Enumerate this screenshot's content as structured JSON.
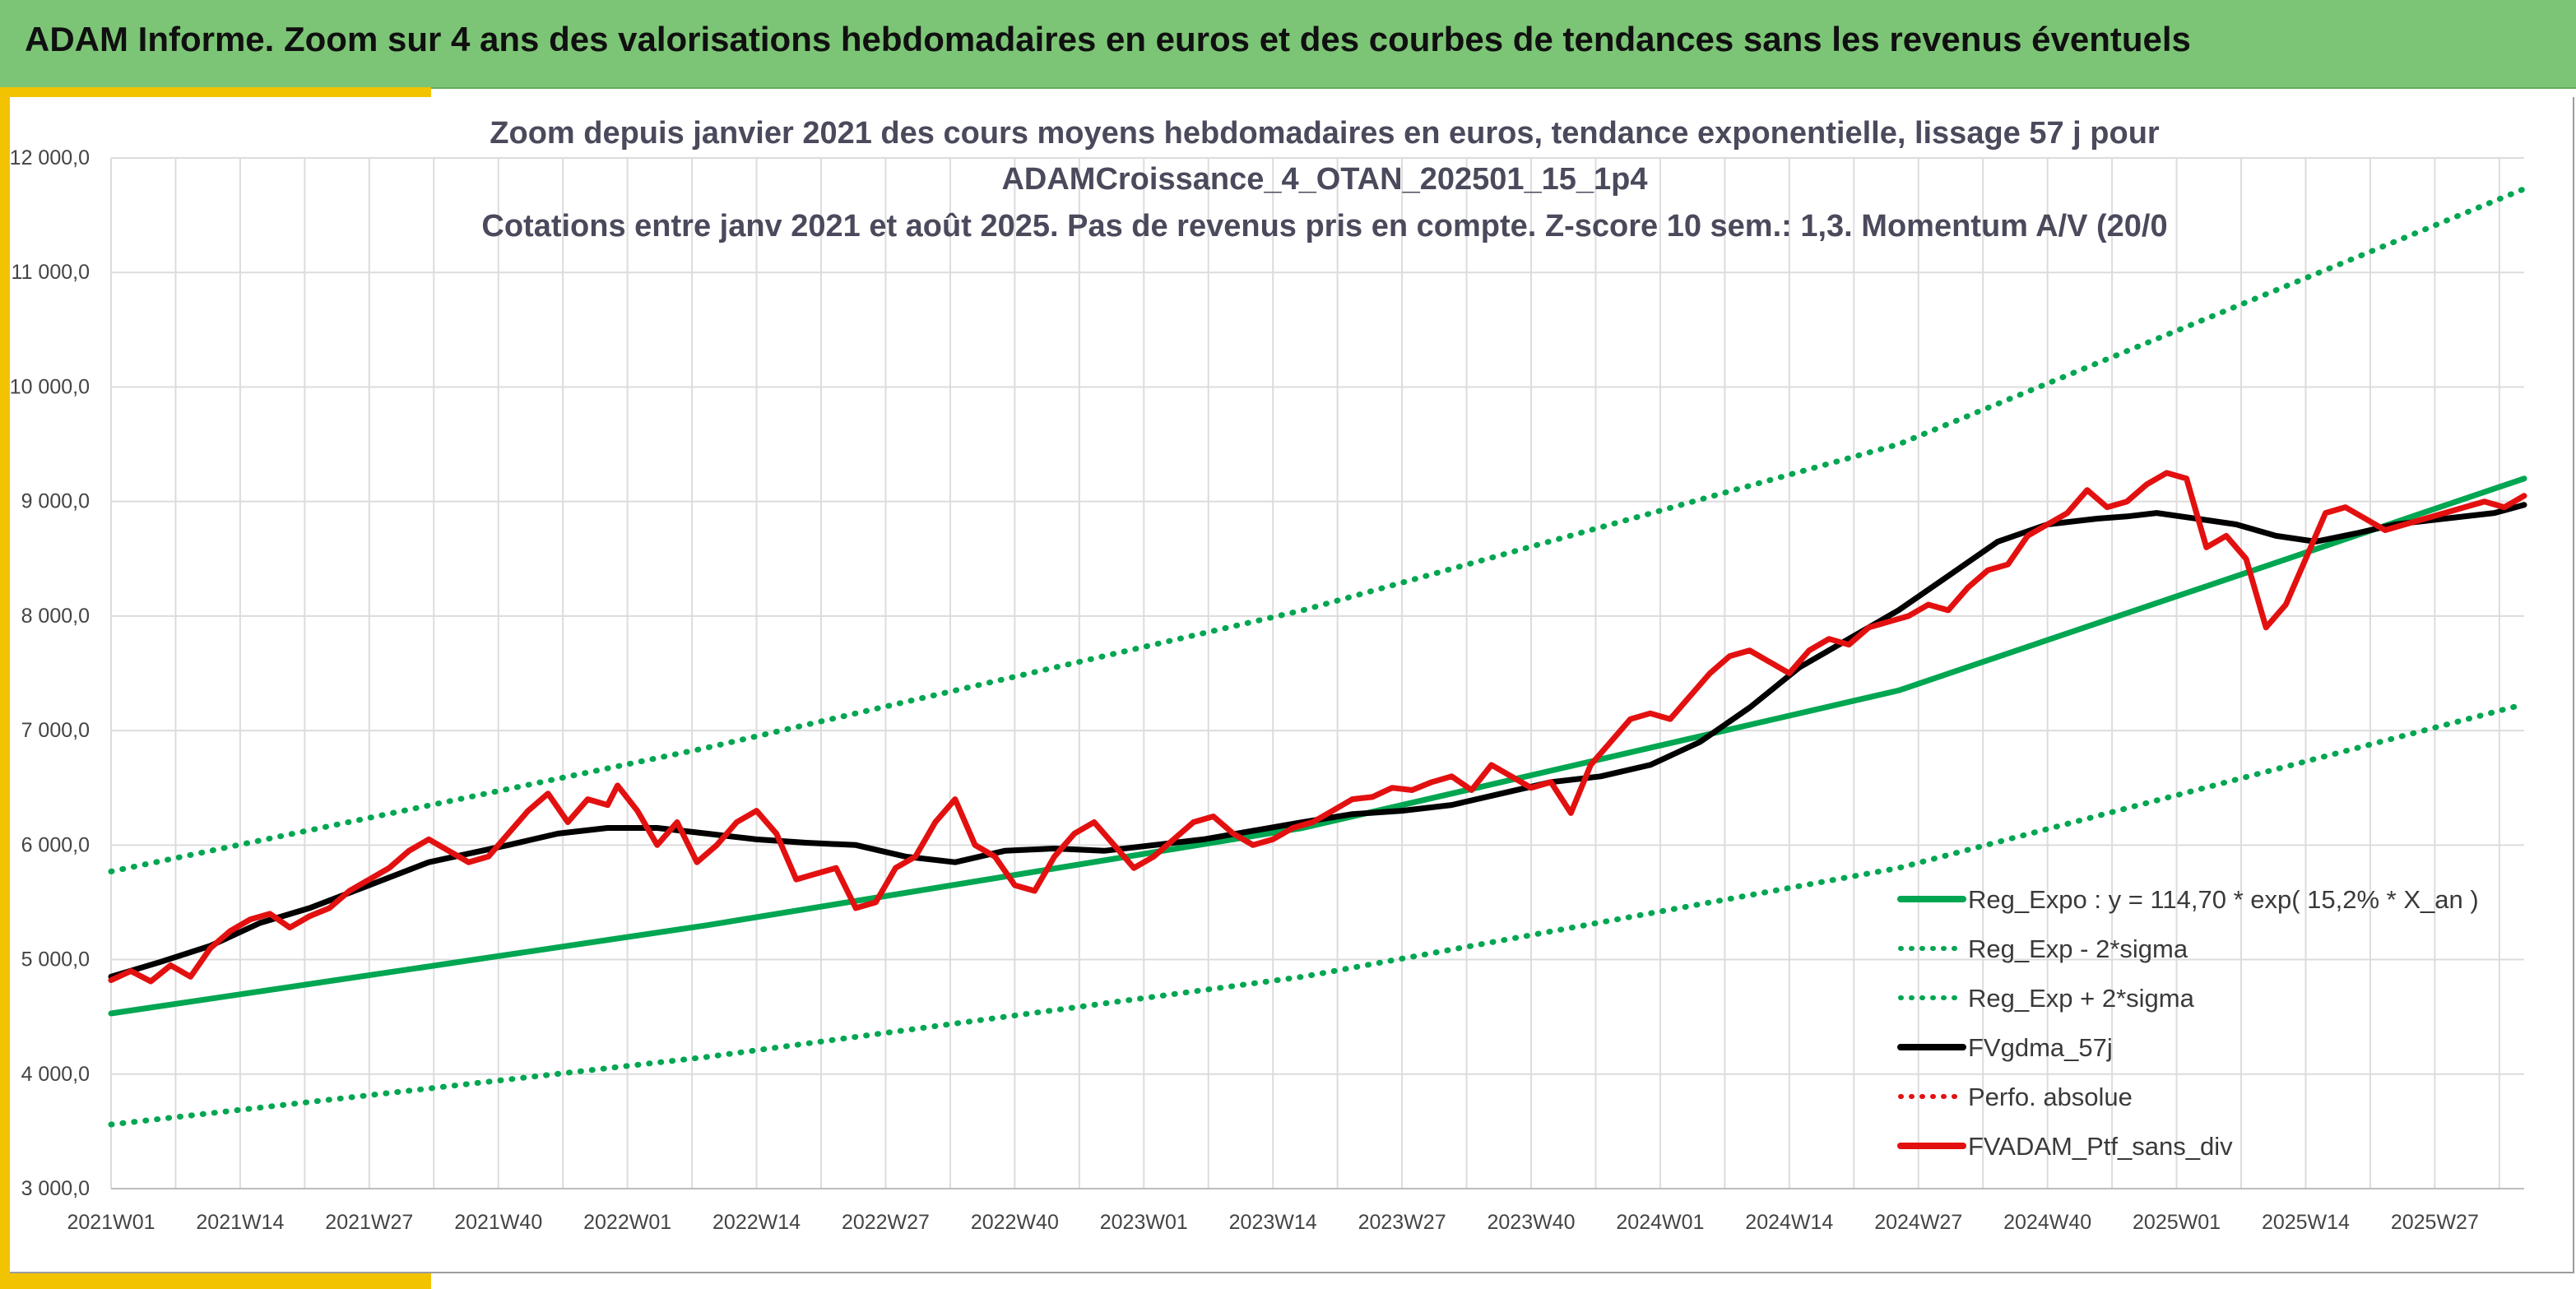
{
  "header": {
    "title": "ADAM Informe. Zoom sur 4 ans des valorisations hebdomadaires en euros et des courbes de tendances sans les revenus éventuels"
  },
  "colors": {
    "header_bg": "#7cc576",
    "accent": "#f2c300",
    "trend": "#00a651",
    "average": "#000000",
    "portfolio": "#e31010"
  },
  "chart_data": {
    "type": "line",
    "title_lines": [
      "Zoom depuis janvier 2021 des cours moyens hebdomadaires en euros, tendance exponentielle, lissage 57 j pour",
      "ADAMCroissance_4_OTAN_202501_15_1p4",
      "Cotations entre janv 2021 et août 2025. Pas de revenus pris en compte. Z-score 10 sem.: 1,3. Momentum A/V (20/0"
    ],
    "x_tick_labels": [
      "2021W01",
      "2021W14",
      "2021W27",
      "2021W40",
      "2022W01",
      "2022W14",
      "2022W27",
      "2022W40",
      "2023W01",
      "2023W14",
      "2023W27",
      "2023W40",
      "2024W01",
      "2024W14",
      "2024W27",
      "2024W40",
      "2025W01",
      "2025W14",
      "2025W27"
    ],
    "y_tick_labels": [
      "3 000,0",
      "4 000,0",
      "5 000,0",
      "6 000,0",
      "7 000,0",
      "8 000,0",
      "9 000,0",
      "10 000,0",
      "11 000,0",
      "12 000,0"
    ],
    "ylim": [
      3000,
      12000
    ],
    "x_unit": "weeks since 2021W01",
    "xlim": [
      0,
      243
    ],
    "grid": true,
    "legend_position": "bottom-right",
    "legend": [
      {
        "label": "Reg_Expo : y = 114,70 * exp( 15,2% *  X_an )",
        "style": "solid",
        "color": "#00a651"
      },
      {
        "label": "Reg_Exp - 2*sigma",
        "style": "dotted",
        "color": "#00a651"
      },
      {
        "label": "Reg_Exp + 2*sigma",
        "style": "dotted",
        "color": "#00a651"
      },
      {
        "label": "FVgdma_57j",
        "style": "solid",
        "color": "#000000"
      },
      {
        "label": "Perfo. absolue",
        "style": "dotted",
        "color": "#e31010"
      },
      {
        "label": "FVADAM_Ptf_sans_div",
        "style": "solid",
        "color": "#e31010"
      }
    ],
    "series": [
      {
        "name": "Reg_Expo : y = 114,70 * exp( 15,2% *  X_an )",
        "x": [
          0,
          60,
          120,
          180,
          243
        ],
        "values": [
          4530,
          5300,
          6150,
          7350,
          9200
        ]
      },
      {
        "name": "Reg_Exp - 2*sigma",
        "x": [
          0,
          60,
          120,
          180,
          243
        ],
        "values": [
          3560,
          4150,
          4850,
          5800,
          7230
        ]
      },
      {
        "name": "Reg_Exp + 2*sigma",
        "x": [
          0,
          60,
          120,
          180,
          243
        ],
        "values": [
          5770,
          6850,
          8050,
          9500,
          11730
        ]
      },
      {
        "name": "FVgdma_57j",
        "x": [
          0,
          5,
          10,
          15,
          20,
          26,
          32,
          40,
          45,
          50,
          55,
          60,
          65,
          70,
          75,
          80,
          85,
          90,
          95,
          100,
          110,
          120,
          125,
          130,
          135,
          140,
          145,
          150,
          155,
          160,
          165,
          170,
          175,
          180,
          185,
          190,
          195,
          200,
          203,
          206,
          210,
          214,
          218,
          222,
          226,
          230,
          235,
          240,
          243
        ],
        "values": [
          4850,
          4980,
          5120,
          5320,
          5450,
          5650,
          5850,
          6000,
          6100,
          6150,
          6150,
          6100,
          6050,
          6020,
          6000,
          5900,
          5850,
          5950,
          5970,
          5950,
          6050,
          6200,
          6270,
          6300,
          6350,
          6450,
          6550,
          6600,
          6700,
          6900,
          7200,
          7550,
          7800,
          8050,
          8350,
          8650,
          8800,
          8850,
          8870,
          8900,
          8850,
          8800,
          8700,
          8650,
          8720,
          8800,
          8850,
          8900,
          8970
        ]
      },
      {
        "name": "FVADAM_Ptf_sans_div",
        "x": [
          0,
          2,
          4,
          6,
          8,
          10,
          12,
          14,
          16,
          18,
          20,
          22,
          24,
          26,
          28,
          30,
          32,
          34,
          36,
          38,
          40,
          42,
          44,
          46,
          48,
          50,
          51,
          53,
          55,
          57,
          59,
          61,
          63,
          65,
          67,
          69,
          71,
          73,
          75,
          77,
          79,
          81,
          83,
          85,
          87,
          89,
          91,
          93,
          95,
          97,
          99,
          101,
          103,
          105,
          107,
          109,
          111,
          113,
          115,
          117,
          119,
          121,
          123,
          125,
          127,
          129,
          131,
          133,
          135,
          137,
          139,
          141,
          143,
          145,
          147,
          149,
          151,
          153,
          155,
          157,
          159,
          161,
          163,
          165,
          167,
          169,
          171,
          173,
          175,
          177,
          179,
          181,
          183,
          185,
          187,
          189,
          191,
          193,
          195,
          197,
          199,
          201,
          203,
          205,
          207,
          209,
          211,
          213,
          215,
          217,
          219,
          221,
          223,
          225,
          227,
          229,
          231,
          233,
          235,
          237,
          239,
          241,
          243
        ],
        "values": [
          4820,
          4900,
          4810,
          4950,
          4850,
          5100,
          5250,
          5350,
          5400,
          5280,
          5380,
          5450,
          5600,
          5700,
          5800,
          5950,
          6050,
          5950,
          5850,
          5900,
          6100,
          6300,
          6450,
          6200,
          6400,
          6350,
          6520,
          6300,
          6000,
          6200,
          5850,
          6000,
          6200,
          6300,
          6100,
          5700,
          5750,
          5800,
          5450,
          5500,
          5800,
          5900,
          6200,
          6400,
          6000,
          5900,
          5650,
          5600,
          5900,
          6100,
          6200,
          6000,
          5800,
          5900,
          6050,
          6200,
          6250,
          6100,
          6000,
          6050,
          6150,
          6200,
          6300,
          6400,
          6420,
          6500,
          6480,
          6550,
          6600,
          6480,
          6700,
          6600,
          6500,
          6550,
          6280,
          6700,
          6900,
          7100,
          7150,
          7100,
          7300,
          7500,
          7650,
          7700,
          7600,
          7500,
          7700,
          7800,
          7750,
          7900,
          7950,
          8000,
          8100,
          8050,
          8250,
          8400,
          8450,
          8700,
          8800,
          8900,
          9100,
          8950,
          9000,
          9150,
          9250,
          9200,
          8600,
          8700,
          8500,
          7900,
          8100,
          8500,
          8900,
          8950,
          8850,
          8750,
          8800,
          8850,
          8900,
          8950,
          9000,
          8950,
          9050
        ]
      }
    ]
  }
}
